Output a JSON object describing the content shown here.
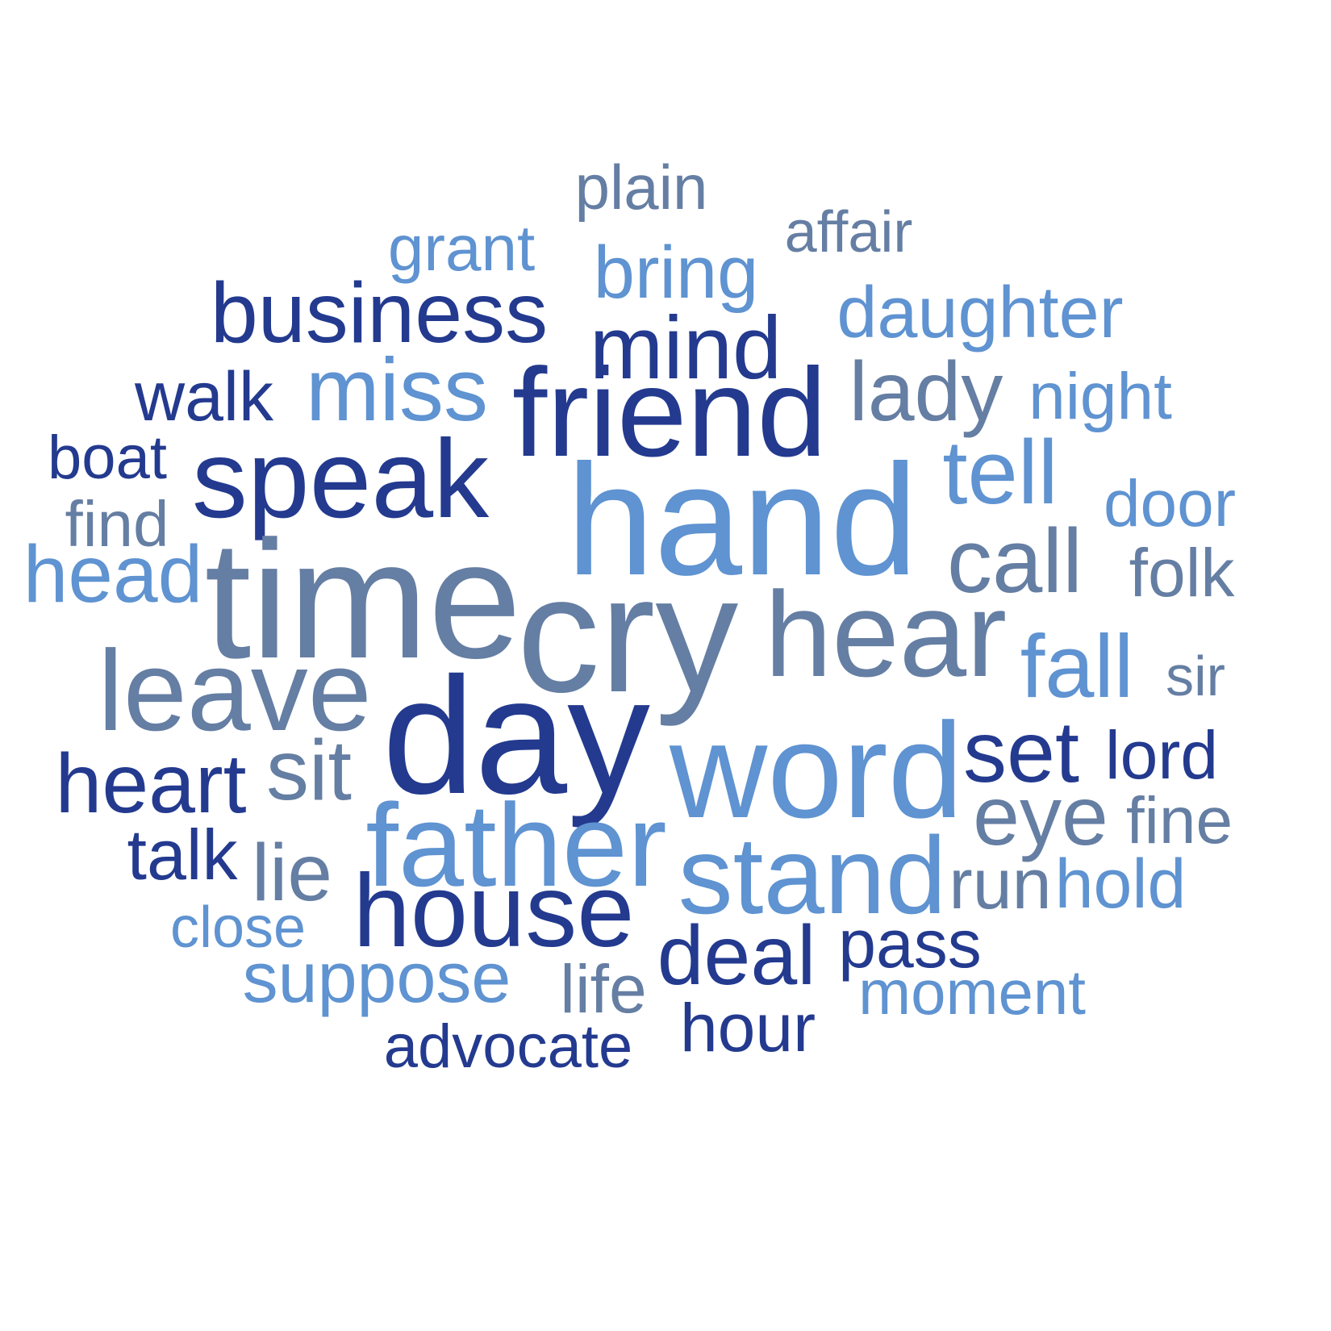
{
  "colors": {
    "dark": "#233a8f",
    "slate": "#657ea3",
    "light": "#5f93d1",
    "background": "#ffffff"
  },
  "words": {
    "plain": "plain",
    "affair": "affair",
    "grant": "grant",
    "bring": "bring",
    "business": "business",
    "daughter": "daughter",
    "mind": "mind",
    "walk": "walk",
    "miss": "miss",
    "friend": "friend",
    "lady": "lady",
    "night": "night",
    "boat": "boat",
    "speak": "speak",
    "tell": "tell",
    "door": "door",
    "find": "find",
    "hand": "hand",
    "call": "call",
    "folk": "folk",
    "head": "head",
    "time": "time",
    "cry": "cry",
    "hear": "hear",
    "leave": "leave",
    "fall": "fall",
    "sir": "sir",
    "day": "day",
    "word": "word",
    "set": "set",
    "lord": "lord",
    "heart": "heart",
    "sit": "sit",
    "eye": "eye",
    "fine": "fine",
    "father": "father",
    "talk": "talk",
    "lie": "lie",
    "stand": "stand",
    "run": "run",
    "hold": "hold",
    "house": "house",
    "close": "close",
    "deal": "deal",
    "pass": "pass",
    "suppose": "suppose",
    "life": "life",
    "moment": "moment",
    "hour": "hour",
    "advocate": "advocate"
  }
}
